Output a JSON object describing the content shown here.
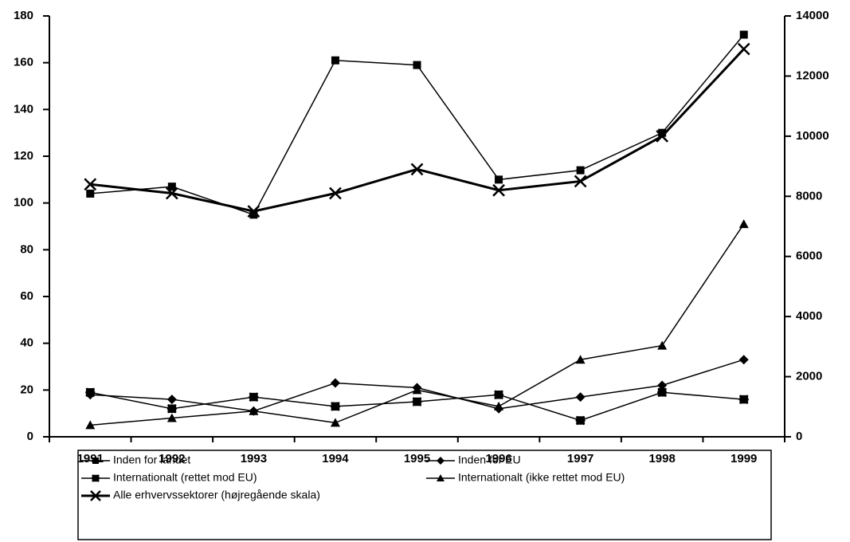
{
  "chart_data": {
    "type": "line",
    "categories": [
      "1991",
      "1992",
      "1993",
      "1994",
      "1995",
      "1996",
      "1997",
      "1998",
      "1999"
    ],
    "ylim": [
      0,
      180
    ],
    "yticks": [
      0,
      20,
      40,
      60,
      80,
      100,
      120,
      140,
      160,
      180
    ],
    "y2lim": [
      0,
      14000
    ],
    "y2ticks": [
      0,
      2000,
      4000,
      6000,
      8000,
      10000,
      12000,
      14000
    ],
    "series": [
      {
        "name": "Inden for landet",
        "color": "#000000",
        "marker": "square",
        "linewidth": 1.5,
        "values": [
          104,
          107,
          95,
          161,
          159,
          110,
          114,
          130,
          172
        ]
      },
      {
        "name": "Inden for EU",
        "color": "#000000",
        "marker": "diamond",
        "linewidth": 1.5,
        "values": [
          18,
          16,
          11,
          23,
          21,
          12,
          17,
          22,
          33
        ]
      },
      {
        "name": "Internationalt (rettet mod EU)",
        "color": "#000000",
        "marker": "star",
        "linewidth": 1.5,
        "values": [
          19,
          12,
          17,
          13,
          15,
          18,
          7,
          19,
          16
        ]
      },
      {
        "name": "Internationalt (ikke rettet mod EU)",
        "color": "#000000",
        "marker": "triangle",
        "linewidth": 1.5,
        "values": [
          5,
          8,
          11,
          6,
          20,
          13,
          33,
          39,
          91
        ]
      },
      {
        "name": "Alle erhvervssektorer (højregående skala)",
        "color": "#000000",
        "marker": "x",
        "linewidth": 3,
        "axis": "y2",
        "values": [
          8400,
          8100,
          7500,
          8100,
          8900,
          8200,
          8500,
          10000,
          12900
        ]
      }
    ]
  }
}
